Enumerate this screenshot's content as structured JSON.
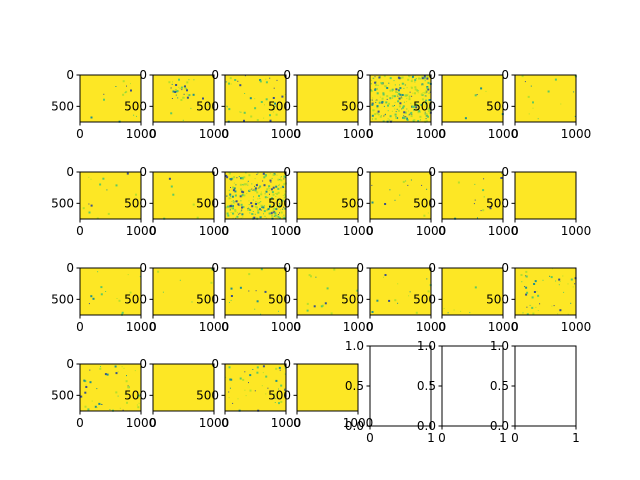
{
  "figure": {
    "background": "#ffffff",
    "grid": false,
    "legend": "none",
    "layout": "4 rows x 7 columns of subplots"
  },
  "chart_data": {
    "type": "heatmap",
    "colormap": "viridis",
    "image_subplots": {
      "image_extent": {
        "x": [
          0,
          1000
        ],
        "y": [
          0,
          750
        ]
      },
      "y_axis_inverted": true,
      "x_ticks": [
        0,
        1000
      ],
      "x_tick_labels": [
        "0",
        "1000"
      ],
      "y_ticks": [
        0,
        500
      ],
      "y_tick_labels": [
        "0",
        "500"
      ]
    },
    "empty_subplots": {
      "xlim": [
        0,
        1
      ],
      "ylim": [
        0,
        1
      ],
      "x_ticks": [
        0,
        1
      ],
      "x_tick_labels": [
        "0",
        "1"
      ],
      "y_ticks": [
        0.0,
        0.5,
        1.0
      ],
      "y_tick_labels": [
        "0.0",
        "0.5",
        "1.0"
      ]
    },
    "panels": [
      {
        "row": 0,
        "col": 0,
        "kind": "image",
        "speckle": "sparse"
      },
      {
        "row": 0,
        "col": 1,
        "kind": "image",
        "speckle": "clustered"
      },
      {
        "row": 0,
        "col": 2,
        "kind": "image",
        "speckle": "moderate"
      },
      {
        "row": 0,
        "col": 3,
        "kind": "image",
        "speckle": "none"
      },
      {
        "row": 0,
        "col": 4,
        "kind": "image",
        "speckle": "dense"
      },
      {
        "row": 0,
        "col": 5,
        "kind": "image",
        "speckle": "faint"
      },
      {
        "row": 0,
        "col": 6,
        "kind": "image",
        "speckle": "sparse"
      },
      {
        "row": 1,
        "col": 0,
        "kind": "image",
        "speckle": "sparse"
      },
      {
        "row": 1,
        "col": 1,
        "kind": "image",
        "speckle": "faint"
      },
      {
        "row": 1,
        "col": 2,
        "kind": "image",
        "speckle": "dense"
      },
      {
        "row": 1,
        "col": 3,
        "kind": "image",
        "speckle": "none"
      },
      {
        "row": 1,
        "col": 4,
        "kind": "image",
        "speckle": "sparse"
      },
      {
        "row": 1,
        "col": 5,
        "kind": "image",
        "speckle": "sparse"
      },
      {
        "row": 1,
        "col": 6,
        "kind": "image",
        "speckle": "none"
      },
      {
        "row": 2,
        "col": 0,
        "kind": "image",
        "speckle": "sparse"
      },
      {
        "row": 2,
        "col": 1,
        "kind": "image",
        "speckle": "faint"
      },
      {
        "row": 2,
        "col": 2,
        "kind": "image",
        "speckle": "sparse"
      },
      {
        "row": 2,
        "col": 3,
        "kind": "image",
        "speckle": "sparse"
      },
      {
        "row": 2,
        "col": 4,
        "kind": "image",
        "speckle": "sparse"
      },
      {
        "row": 2,
        "col": 5,
        "kind": "image",
        "speckle": "faint"
      },
      {
        "row": 2,
        "col": 6,
        "kind": "image",
        "speckle": "moderate"
      },
      {
        "row": 3,
        "col": 0,
        "kind": "image",
        "speckle": "moderate"
      },
      {
        "row": 3,
        "col": 1,
        "kind": "image",
        "speckle": "none"
      },
      {
        "row": 3,
        "col": 2,
        "kind": "image",
        "speckle": "moderate"
      },
      {
        "row": 3,
        "col": 3,
        "kind": "image",
        "speckle": "none"
      },
      {
        "row": 3,
        "col": 4,
        "kind": "empty"
      },
      {
        "row": 3,
        "col": 5,
        "kind": "empty"
      },
      {
        "row": 3,
        "col": 6,
        "kind": "empty"
      }
    ]
  },
  "colors": {
    "background_yellow": "#fde725",
    "speck_light_green": "#b5de2b",
    "speck_green": "#5ec962",
    "speck_teal": "#21918c",
    "speck_blue": "#3b528b",
    "speck_dark": "#440154",
    "axes_color": "#000000"
  }
}
